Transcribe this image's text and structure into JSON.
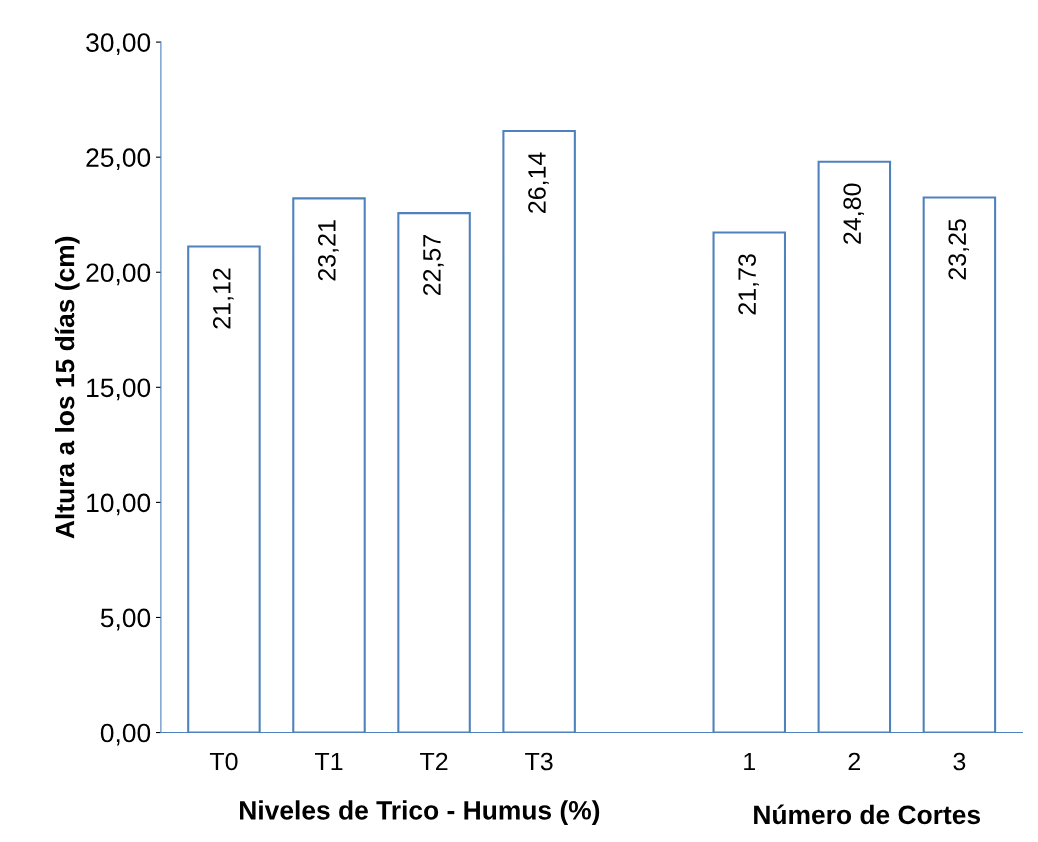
{
  "chart_data": {
    "type": "bar",
    "ylabel": "Altura a los 15 días (cm)",
    "xlabel": "Niveles de Trico - Humus (%)",
    "annotations": [
      "Número de Cortes"
    ],
    "categories": [
      "T0",
      "T1",
      "T2",
      "T3",
      null,
      "1",
      "2",
      "3"
    ],
    "values": [
      21.12,
      23.21,
      22.57,
      26.14,
      null,
      21.73,
      24.8,
      23.25
    ],
    "value_labels": [
      "21,12",
      "23,21",
      "22,57",
      "26,14",
      null,
      "21,73",
      "24,80",
      "23,25"
    ],
    "color": "#ffffff",
    "ylim": [
      0,
      30
    ],
    "yticks": [
      {
        "value": 0,
        "label": "0,00"
      },
      {
        "value": 5,
        "label": "5,00"
      },
      {
        "value": 10,
        "label": "10,00"
      },
      {
        "value": 15,
        "label": "15,00"
      },
      {
        "value": 20,
        "label": "20,00"
      },
      {
        "value": 25,
        "label": "25,00"
      },
      {
        "value": 30,
        "label": "30,00"
      }
    ],
    "grid": false,
    "legend": false
  }
}
